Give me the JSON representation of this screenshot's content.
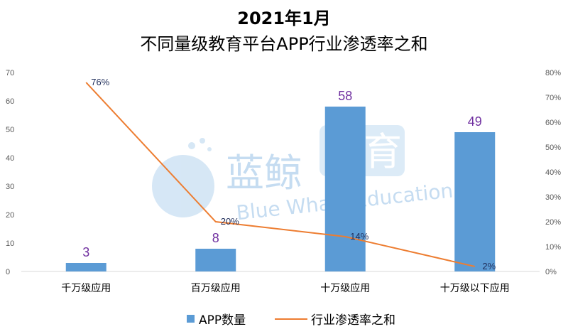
{
  "chart_data": {
    "type": "bar+line",
    "title": "2021年1月",
    "subtitle": "不同量级教育平台APP行业渗透率之和",
    "categories": [
      "千万级应用",
      "百万级应用",
      "十万级应用",
      "十万级以下应用"
    ],
    "series": [
      {
        "name": "APP数量",
        "type": "bar",
        "axis": "left",
        "values": [
          3,
          8,
          58,
          49
        ],
        "labels": [
          "3",
          "8",
          "58",
          "49"
        ],
        "color": "#5b9bd5",
        "label_color": "#7030a0"
      },
      {
        "name": "行业渗透率之和",
        "type": "line",
        "axis": "right",
        "values": [
          76,
          20,
          14,
          2
        ],
        "labels": [
          "76%",
          "20%",
          "14%",
          "2%"
        ],
        "color": "#ed7d31"
      }
    ],
    "y_left": {
      "min": 0,
      "max": 70,
      "step": 10,
      "ticks": [
        "0",
        "10",
        "20",
        "30",
        "40",
        "50",
        "60",
        "70"
      ]
    },
    "y_right": {
      "min": 0,
      "max": 80,
      "step": 10,
      "ticks": [
        "0%",
        "10%",
        "20%",
        "30%",
        "40%",
        "50%",
        "60%",
        "70%",
        "80%"
      ]
    },
    "grid": false,
    "legend_position": "bottom"
  },
  "watermark": {
    "text_cn": "蓝鲸",
    "text_cn_box": "教育",
    "text_en": "Blue Whale Education"
  }
}
